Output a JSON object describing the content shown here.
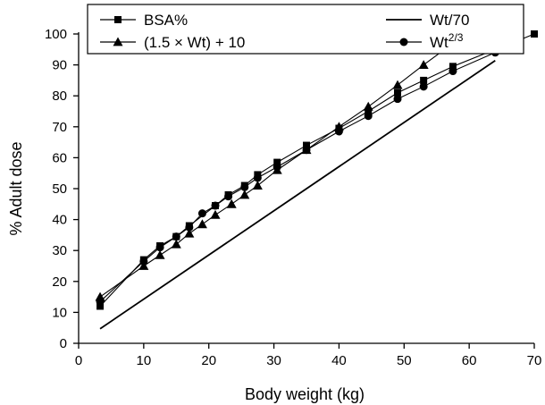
{
  "chart_data": {
    "type": "line",
    "title": "",
    "xlabel": "Body weight (kg)",
    "ylabel": "% Adult dose",
    "xlim": [
      0,
      70
    ],
    "ylim": [
      0,
      100
    ],
    "xticks": [
      "0",
      "10",
      "20",
      "30",
      "40",
      "50",
      "60",
      "70"
    ],
    "yticks": [
      "0",
      "10",
      "20",
      "30",
      "40",
      "50",
      "60",
      "70",
      "80",
      "90",
      "100"
    ],
    "grid": false,
    "legend_position": "top-left",
    "series": [
      {
        "name": "BSA%",
        "marker": "square",
        "color": "#000000",
        "x": [
          3.3,
          10,
          12.5,
          15,
          17,
          21,
          23,
          25.5,
          27.5,
          30.5,
          35,
          40,
          44.5,
          49,
          53,
          57.5,
          64,
          65.3,
          70
        ],
        "y": [
          12,
          27,
          31.5,
          34.5,
          38,
          44.5,
          48,
          51,
          54.5,
          58.5,
          64,
          69.5,
          75,
          81,
          85,
          89.5,
          95,
          96,
          100
        ]
      },
      {
        "name": "Wt/70",
        "marker": "none",
        "color": "#000000",
        "x": [
          3.3,
          64
        ],
        "y": [
          4.7,
          91.4
        ]
      },
      {
        "name": "(1.5 × Wt) + 10",
        "marker": "triangle",
        "color": "#000000",
        "x": [
          3.3,
          10,
          12.5,
          15,
          17,
          19,
          21,
          23.5,
          25.5,
          27.5,
          30.5,
          35,
          40,
          44.5,
          49,
          53,
          57.5
        ],
        "y": [
          15,
          25,
          28.5,
          32,
          35.5,
          38.5,
          41.5,
          45,
          48,
          51,
          56,
          62.5,
          70,
          76.5,
          83.5,
          90,
          97
        ]
      },
      {
        "name": "Wt",
        "superscript": "2/3",
        "marker": "circle",
        "color": "#000000",
        "x": [
          3.3,
          10,
          12.5,
          15,
          17,
          19,
          21,
          23,
          25.5,
          27.5,
          30.5,
          35,
          40,
          44.5,
          49,
          53,
          57.5,
          64
        ],
        "y": [
          13.5,
          26.5,
          31,
          34.5,
          37.5,
          42,
          44.5,
          47.5,
          50.5,
          53.5,
          57,
          62.5,
          68.5,
          73.5,
          79,
          83,
          88,
          94
        ]
      }
    ]
  }
}
